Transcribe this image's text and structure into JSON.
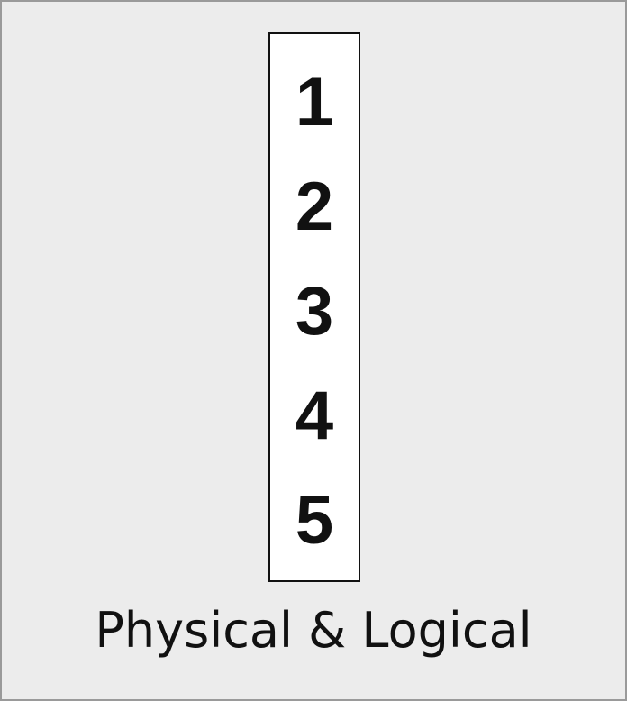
{
  "items": [
    "1",
    "2",
    "3",
    "4",
    "5"
  ],
  "caption": "Physical & Logical",
  "colors": {
    "background": "#ececec",
    "box": "#ffffff",
    "border": "#111111"
  }
}
